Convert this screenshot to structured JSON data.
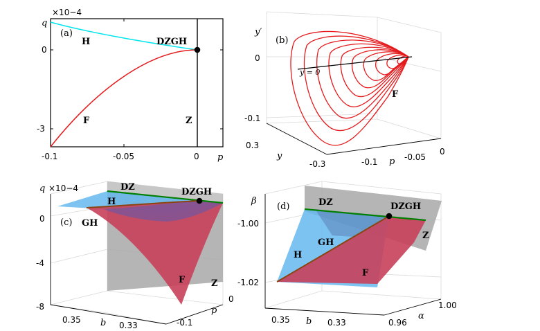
{
  "panels": [
    {
      "tag": "(a)",
      "exp": "×10−4",
      "xlabel": "p",
      "ylabel": "q",
      "xticks": [
        "-0.1",
        "-0.05",
        "0"
      ],
      "yticks": [
        "0",
        "-3"
      ],
      "labels": {
        "H": "H",
        "DZGH": "DZGH",
        "F": "F",
        "Z": "Z"
      }
    },
    {
      "tag": "(b)",
      "ylabel": "y′",
      "zticks": [
        "0",
        "-0.1"
      ],
      "yticks": [
        "0.3",
        "-0.3"
      ],
      "xticks": [
        "-0.1",
        "-0.05",
        "0"
      ],
      "xlabel": "p",
      "y2label": "y",
      "annot": "y = 0",
      "labels": {
        "F": "F"
      }
    },
    {
      "tag": "(c)",
      "exp": "×10−4",
      "zlabel": "q",
      "zticks": [
        "0",
        "-4",
        "-8"
      ],
      "bticks": [
        "0.35",
        "0.33"
      ],
      "blabel": "b",
      "pticks": [
        "0",
        "-0.1"
      ],
      "plabel": "p",
      "labels": {
        "DZ": "DZ",
        "DZGH": "DZGH",
        "H": "H",
        "GH": "GH",
        "F": "F",
        "Z": "Z"
      }
    },
    {
      "tag": "(d)",
      "zlabel": "β",
      "zticks": [
        "-1.00",
        "-1.02"
      ],
      "bticks": [
        "0.35",
        "0.33"
      ],
      "blabel": "b",
      "aticks": [
        "1.00",
        "0.96"
      ],
      "alabel": "α",
      "labels": {
        "DZ": "DZ",
        "DZGH": "DZGH",
        "GH": "GH",
        "H": "H",
        "F": "F",
        "Z": "Z"
      }
    }
  ],
  "colors": {
    "H": "#00e5ee",
    "F": "#e41a1c",
    "DZ": "#008000",
    "GH": "#8b4513",
    "Hsurf": "#66b8f0",
    "Fsurf": "#c8405a",
    "Zsurf": "#a8a8a8"
  }
}
